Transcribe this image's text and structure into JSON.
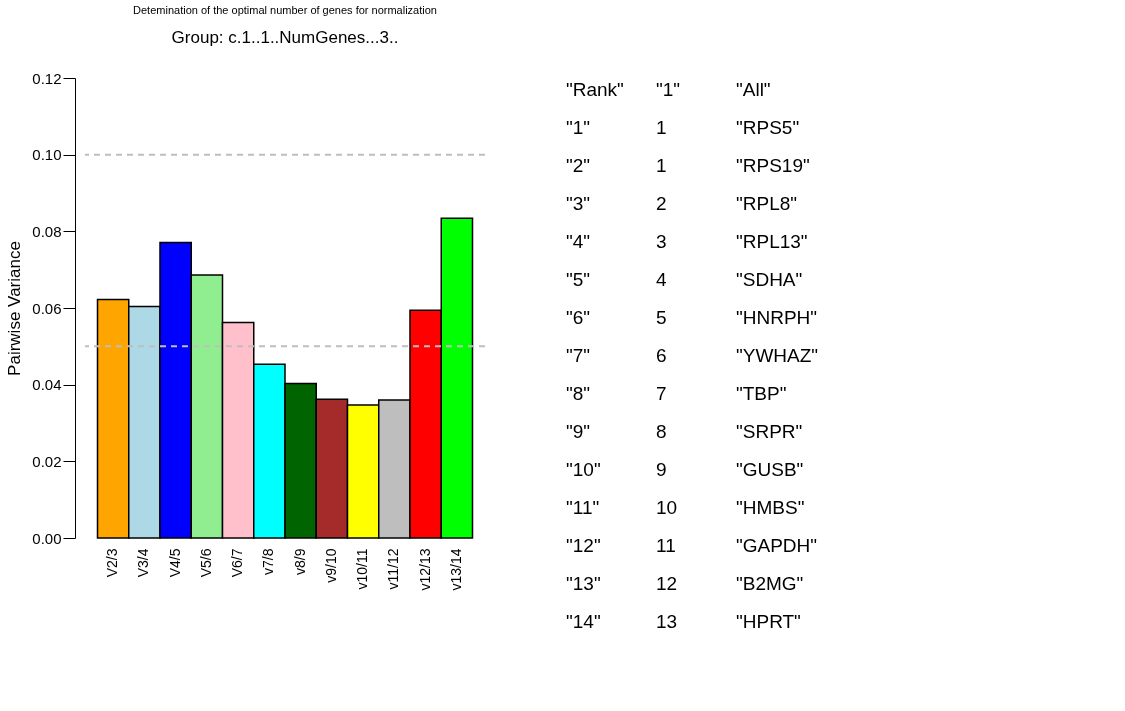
{
  "chart_data": {
    "type": "bar",
    "title": "Detemination of the optimal number of genes for normalization",
    "subtitle": "Group:   c.1..1..NumGenes...3..",
    "ylabel": "Pairwise Variance",
    "categories": [
      "V2/3",
      "V3/4",
      "V4/5",
      "V5/6",
      "V6/7",
      "v7/8",
      "v8/9",
      "v9/10",
      "v10/11",
      "v11/12",
      "v12/13",
      "v13/14"
    ],
    "values": [
      0.0622,
      0.0604,
      0.0771,
      0.0686,
      0.0562,
      0.0453,
      0.0403,
      0.0362,
      0.0347,
      0.036,
      0.0594,
      0.0834
    ],
    "colors": [
      "#ffa500",
      "#add8e6",
      "#0000ff",
      "#90ee90",
      "#ffc0cb",
      "#00ffff",
      "#006400",
      "#a52a2a",
      "#ffff00",
      "#bebebe",
      "#ff0000",
      "#00ff00"
    ],
    "ylim": [
      0,
      0.12
    ],
    "yticks": [
      {
        "value": 0,
        "label": "0.00"
      },
      0.02,
      0.04,
      0.06,
      0.08,
      {
        "value": 0.1,
        "label": "0.10"
      },
      0.12
    ],
    "grid": false,
    "ref_lines": [
      {
        "axis": "y",
        "value": 0.05,
        "color": "#bebebe",
        "line_style": "dashed"
      },
      {
        "axis": "y",
        "value": 0.1,
        "color": "#bebebe",
        "line_style": "dashed"
      }
    ],
    "annotations": [
      "\"Rank\"",
      "\"1\"",
      "\"All\"",
      "\"1\"",
      "1",
      "\"RPS5\"",
      "\"2\"",
      "1",
      "\"RPS19\"",
      "\"3\"",
      "2",
      "\"RPL8\"",
      "\"4\"",
      "3",
      "\"RPL13\"",
      "\"5\"",
      "4",
      "\"SDHA\"",
      "\"6\"",
      "5",
      "\"HNRPH\"",
      "\"7\"",
      "6",
      "\"YWHAZ\"",
      "\"8\"",
      "7",
      "\"TBP\"",
      "\"9\"",
      "8",
      "\"SRPR\"",
      "\"10\"",
      "9",
      "\"GUSB\"",
      "\"11\"",
      "10",
      "\"HMBS\"",
      "\"12\"",
      "11",
      "\"GAPDH\"",
      "\"13\"",
      "12",
      "\"B2MG\"",
      "\"14\"",
      "13",
      "\"HPRT\""
    ]
  }
}
